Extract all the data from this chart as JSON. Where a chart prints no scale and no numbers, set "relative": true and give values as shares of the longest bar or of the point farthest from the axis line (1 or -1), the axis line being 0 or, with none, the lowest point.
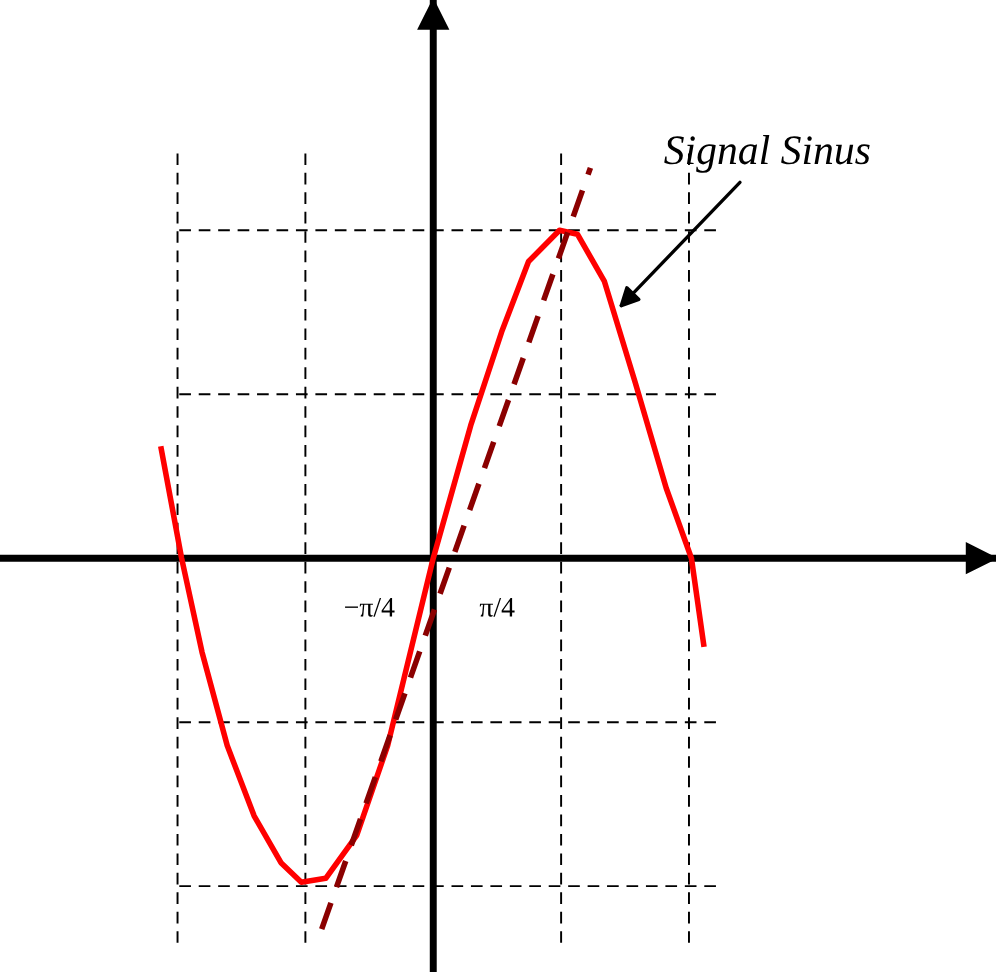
{
  "chart_data": {
    "type": "line",
    "relative": true,
    "tick_labels": "x",
    "xlim": [
      -5.32,
      6.91
    ],
    "xticks": [
      {
        "value": -0.785,
        "label": "−π/4"
      },
      {
        "value": 0.785,
        "label": "π/4"
      }
    ],
    "series": [
      {
        "color": "#ff0000",
        "line_style": "solid",
        "x": [
          -3.34,
          -3.09,
          -2.84,
          -2.53,
          -2.2,
          -1.87,
          -1.62,
          -1.32,
          -0.94,
          -0.56,
          0,
          0.46,
          0.84,
          1.17,
          1.55,
          1.77,
          2.1,
          2.48,
          2.86,
          3.17,
          3.32
        ],
        "values": [
          0.28,
          0,
          -0.24,
          -0.48,
          -0.66,
          -0.78,
          -0.83,
          -0.82,
          -0.71,
          -0.48,
          0,
          0.34,
          0.58,
          0.76,
          0.84,
          0.83,
          0.71,
          0.45,
          0.18,
          0,
          -0.22
        ]
      },
      {
        "color": "#8b0000",
        "line_style": "dashed",
        "x": [
          -1.37,
          1.93
        ],
        "values": [
          -0.95,
          1
        ]
      }
    ],
    "ref_lines": [
      {
        "axis": "x",
        "value": -3.14,
        "line_style": "dashed"
      },
      {
        "axis": "x",
        "value": -1.57,
        "line_style": "dashed"
      },
      {
        "axis": "x",
        "value": 1.57,
        "line_style": "dashed"
      },
      {
        "axis": "x",
        "value": 3.14,
        "line_style": "dashed"
      },
      {
        "axis": "y",
        "value": 0.84,
        "line_style": "dashed"
      },
      {
        "axis": "y",
        "value": 0.42,
        "line_style": "dashed"
      },
      {
        "axis": "y",
        "value": -0.42,
        "line_style": "dashed"
      },
      {
        "axis": "y",
        "value": -0.84,
        "line_style": "dashed"
      }
    ],
    "annotations": [
      {
        "text": "Signal Sinus",
        "x": 2.23,
        "y": 0.63
      }
    ]
  }
}
